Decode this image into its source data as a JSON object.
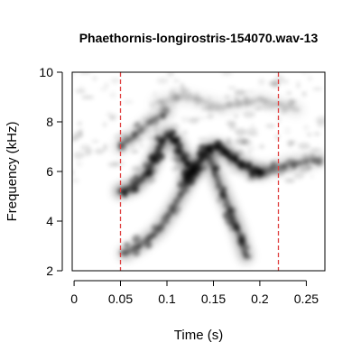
{
  "chart_data": {
    "type": "heatmap",
    "title": "Phaethornis-longirostris-154070.wav-13",
    "xlabel": "Time (s)",
    "ylabel": "Frequency (kHz)",
    "xlim": [
      -0.002,
      0.27
    ],
    "ylim": [
      2,
      10
    ],
    "x_ticks": [
      0,
      0.05,
      0.1,
      0.15,
      0.2,
      0.25
    ],
    "x_tick_labels": [
      "0",
      "0.05",
      "0.1",
      "0.15",
      "0.2",
      "0.25"
    ],
    "y_ticks": [
      2,
      4,
      6,
      8,
      10
    ],
    "y_tick_labels": [
      "2",
      "4",
      "6",
      "8",
      "10"
    ],
    "selection_markers": [
      {
        "time": 0.05,
        "color": "#e04040",
        "style": "dashed"
      },
      {
        "time": 0.22,
        "color": "#e04040",
        "style": "dashed"
      }
    ],
    "signal_tracks": [
      {
        "name": "note-1-upstroke",
        "points": [
          [
            0.055,
            2.7
          ],
          [
            0.07,
            3.0
          ],
          [
            0.09,
            3.6
          ],
          [
            0.105,
            4.4
          ],
          [
            0.12,
            5.4
          ],
          [
            0.13,
            6.1
          ]
        ],
        "intensity": 0.55
      },
      {
        "name": "note-1-sweep",
        "points": [
          [
            0.05,
            5.2
          ],
          [
            0.065,
            5.4
          ],
          [
            0.08,
            6.0
          ],
          [
            0.09,
            6.8
          ],
          [
            0.1,
            7.5
          ],
          [
            0.11,
            7.2
          ],
          [
            0.12,
            6.4
          ],
          [
            0.13,
            6.0
          ]
        ],
        "intensity": 0.8
      },
      {
        "name": "note-1-harmonic",
        "points": [
          [
            0.05,
            7.0
          ],
          [
            0.07,
            7.6
          ],
          [
            0.085,
            8.1
          ],
          [
            0.1,
            8.4
          ]
        ],
        "intensity": 0.35
      },
      {
        "name": "note-2-sweep",
        "points": [
          [
            0.12,
            5.7
          ],
          [
            0.13,
            6.1
          ],
          [
            0.14,
            6.7
          ],
          [
            0.15,
            7.0
          ],
          [
            0.16,
            6.9
          ],
          [
            0.175,
            6.4
          ],
          [
            0.19,
            6.1
          ],
          [
            0.2,
            6.0
          ]
        ],
        "intensity": 0.85
      },
      {
        "name": "note-2-down",
        "points": [
          [
            0.145,
            6.6
          ],
          [
            0.155,
            5.6
          ],
          [
            0.165,
            4.7
          ],
          [
            0.175,
            3.8
          ],
          [
            0.18,
            3.2
          ],
          [
            0.185,
            2.6
          ]
        ],
        "intensity": 0.6
      },
      {
        "name": "note-2-tail",
        "points": [
          [
            0.2,
            6.0
          ],
          [
            0.215,
            6.1
          ],
          [
            0.23,
            6.3
          ],
          [
            0.25,
            6.4
          ],
          [
            0.265,
            6.5
          ]
        ],
        "intensity": 0.35
      },
      {
        "name": "upper-noise",
        "points": [
          [
            0.09,
            8.8
          ],
          [
            0.12,
            9.0
          ],
          [
            0.16,
            8.6
          ],
          [
            0.2,
            8.9
          ],
          [
            0.24,
            8.5
          ]
        ],
        "intensity": 0.18
      }
    ],
    "grid": false,
    "legend": "none"
  }
}
